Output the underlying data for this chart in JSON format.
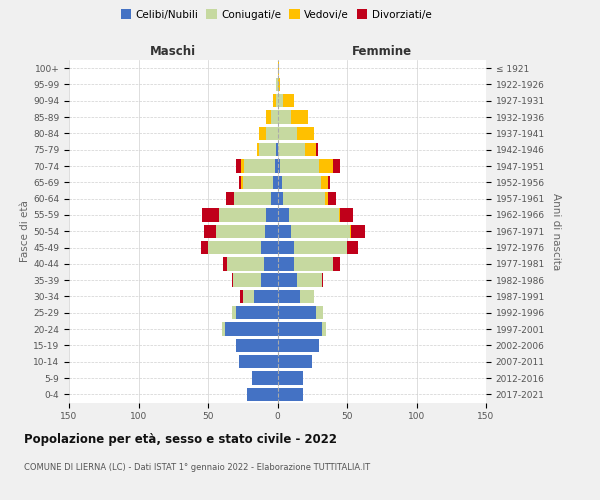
{
  "age_groups": [
    "0-4",
    "5-9",
    "10-14",
    "15-19",
    "20-24",
    "25-29",
    "30-34",
    "35-39",
    "40-44",
    "45-49",
    "50-54",
    "55-59",
    "60-64",
    "65-69",
    "70-74",
    "75-79",
    "80-84",
    "85-89",
    "90-94",
    "95-99",
    "100+"
  ],
  "birth_years": [
    "2017-2021",
    "2012-2016",
    "2007-2011",
    "2002-2006",
    "1997-2001",
    "1992-1996",
    "1987-1991",
    "1982-1986",
    "1977-1981",
    "1972-1976",
    "1967-1971",
    "1962-1966",
    "1957-1961",
    "1952-1956",
    "1947-1951",
    "1942-1946",
    "1937-1941",
    "1932-1936",
    "1927-1931",
    "1922-1926",
    "≤ 1921"
  ],
  "colors": {
    "celibi": "#4472c4",
    "coniugati": "#c6d9a0",
    "vedovi": "#ffc000",
    "divorziati": "#c0001a"
  },
  "maschi": {
    "celibi": [
      22,
      18,
      28,
      30,
      38,
      30,
      17,
      12,
      10,
      12,
      9,
      8,
      5,
      3,
      2,
      1,
      0,
      0,
      0,
      0,
      0
    ],
    "coniugati": [
      0,
      0,
      0,
      0,
      2,
      3,
      8,
      20,
      26,
      38,
      35,
      34,
      26,
      22,
      22,
      12,
      8,
      5,
      1,
      1,
      0
    ],
    "vedovi": [
      0,
      0,
      0,
      0,
      0,
      0,
      0,
      0,
      0,
      0,
      0,
      0,
      0,
      1,
      2,
      2,
      5,
      3,
      2,
      0,
      0
    ],
    "divorziati": [
      0,
      0,
      0,
      0,
      0,
      0,
      2,
      1,
      3,
      5,
      9,
      12,
      6,
      2,
      4,
      0,
      0,
      0,
      0,
      0,
      0
    ]
  },
  "femmine": {
    "celibi": [
      18,
      18,
      25,
      30,
      32,
      28,
      16,
      14,
      12,
      12,
      10,
      8,
      4,
      3,
      2,
      0,
      0,
      0,
      0,
      0,
      0
    ],
    "coniugati": [
      0,
      0,
      0,
      0,
      3,
      5,
      10,
      18,
      28,
      38,
      42,
      36,
      30,
      28,
      28,
      20,
      14,
      10,
      4,
      0,
      0
    ],
    "vedovi": [
      0,
      0,
      0,
      0,
      0,
      0,
      0,
      0,
      0,
      0,
      1,
      1,
      2,
      5,
      10,
      8,
      12,
      12,
      8,
      2,
      1
    ],
    "divorziati": [
      0,
      0,
      0,
      0,
      0,
      0,
      0,
      1,
      5,
      8,
      10,
      9,
      6,
      2,
      5,
      1,
      0,
      0,
      0,
      0,
      0
    ]
  },
  "xlim": 150,
  "title": "Popolazione per età, sesso e stato civile - 2022",
  "subtitle": "COMUNE DI LIERNA (LC) - Dati ISTAT 1° gennaio 2022 - Elaborazione TUTTITALIA.IT",
  "ylabel_left": "Fasce di età",
  "ylabel_right": "Anni di nascita",
  "label_maschi": "Maschi",
  "label_femmine": "Femmine",
  "legend_labels": [
    "Celibi/Nubili",
    "Coniugati/e",
    "Vedovi/e",
    "Divorziati/e"
  ],
  "bg_color": "#f0f0f0",
  "plot_bg": "#ffffff"
}
